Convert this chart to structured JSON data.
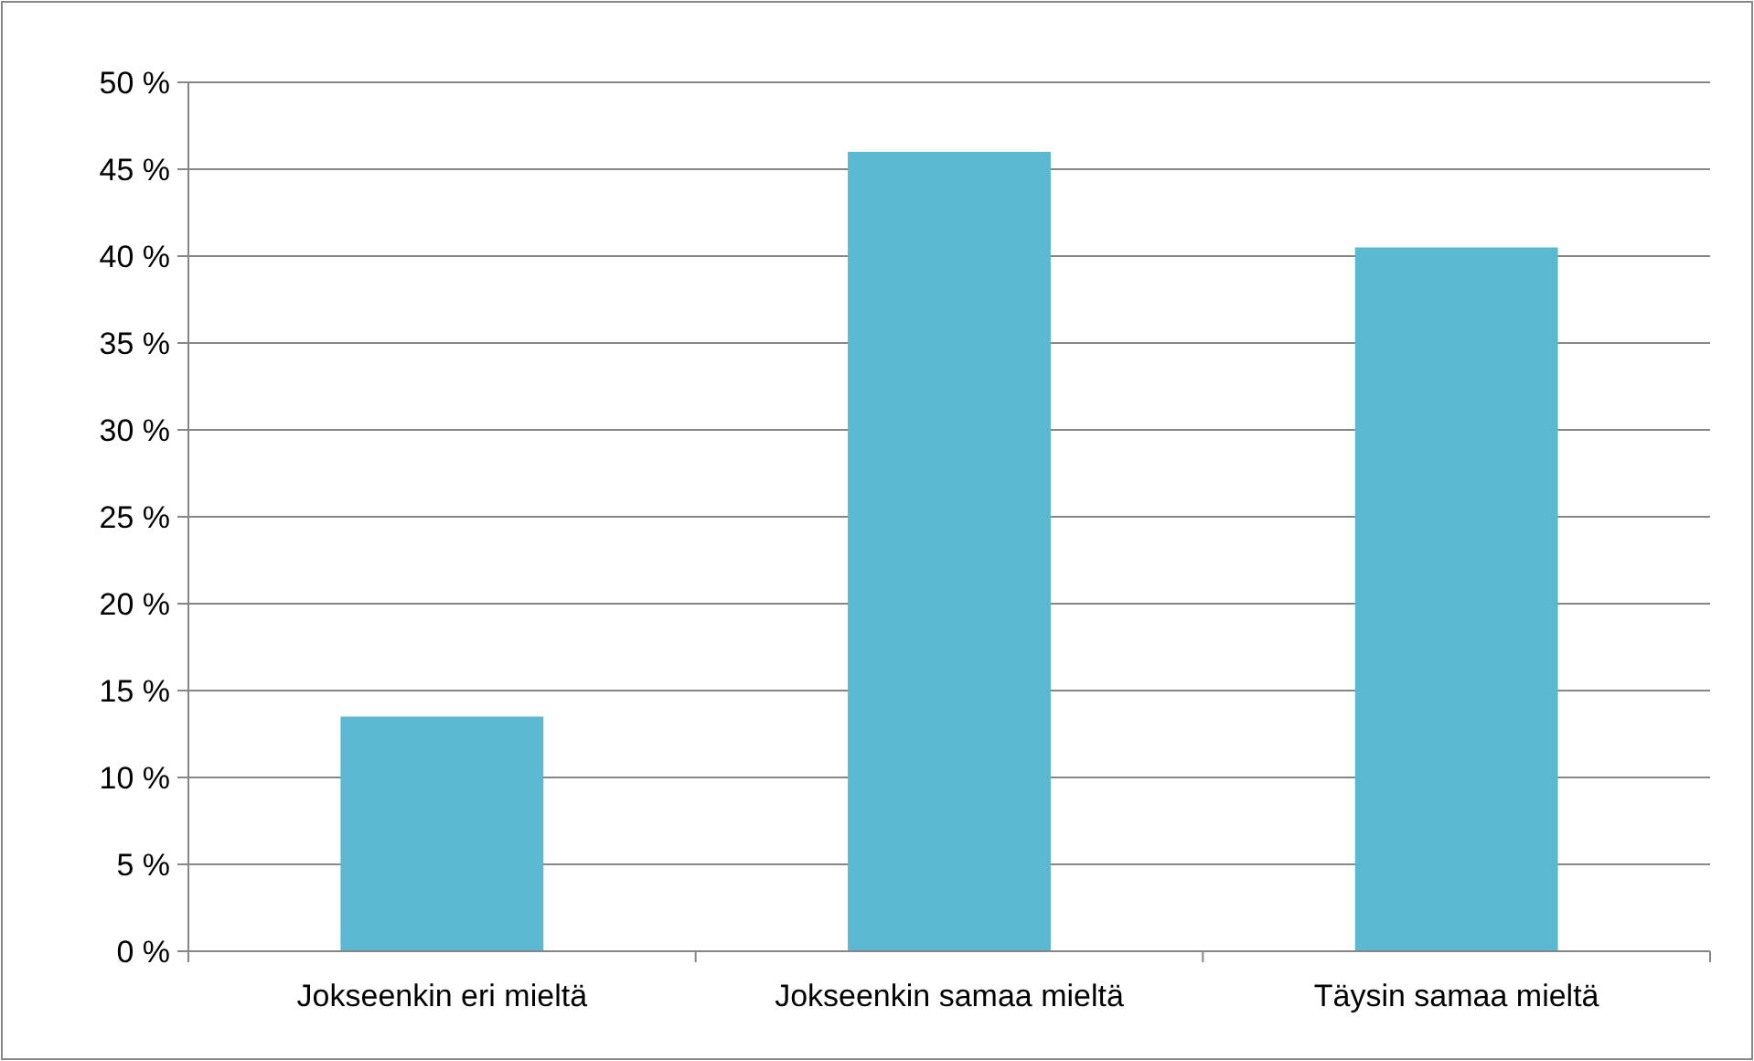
{
  "chart_data": {
    "type": "bar",
    "categories": [
      "Jokseenkin eri mieltä",
      "Jokseenkin samaa mieltä",
      "Täysin samaa mieltä"
    ],
    "values": [
      13.5,
      46,
      40.5
    ],
    "color": "#5bb8d1",
    "ylim": [
      0,
      50
    ],
    "yticks": [
      {
        "value": 0,
        "label": "0 %"
      },
      {
        "value": 5,
        "label": "5 %"
      },
      {
        "value": 10,
        "label": "10 %"
      },
      {
        "value": 15,
        "label": "15 %"
      },
      {
        "value": 20,
        "label": "20 %"
      },
      {
        "value": 25,
        "label": "25 %"
      },
      {
        "value": 30,
        "label": "30 %"
      },
      {
        "value": 35,
        "label": "35 %"
      },
      {
        "value": 40,
        "label": "40 %"
      },
      {
        "value": 45,
        "label": "45 %"
      },
      {
        "value": 50,
        "label": "50 %"
      }
    ],
    "grid": "y"
  }
}
